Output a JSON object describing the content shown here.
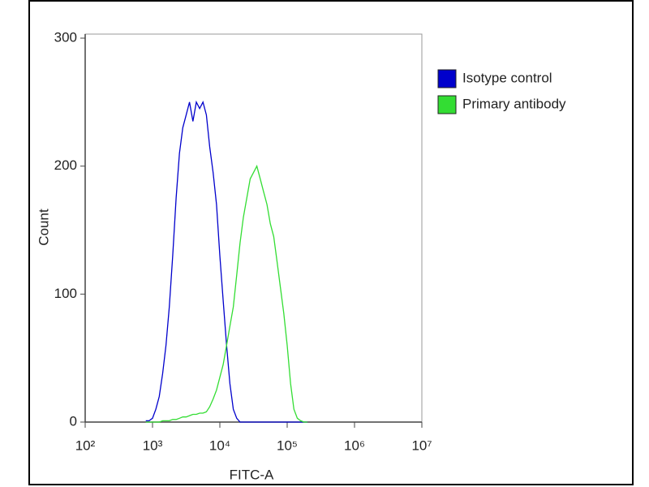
{
  "chart_data": {
    "type": "line",
    "xlabel": "FITC-A",
    "ylabel": "Count",
    "xscale": "log",
    "xlim": [
      100,
      10000000
    ],
    "ylim": [
      0,
      300
    ],
    "xticks": [
      {
        "value": 100,
        "label": "10²"
      },
      {
        "value": 1000,
        "label": "10³"
      },
      {
        "value": 10000,
        "label": "10⁴"
      },
      {
        "value": 100000,
        "label": "10⁵"
      },
      {
        "value": 1000000,
        "label": "10⁶"
      },
      {
        "value": 10000000,
        "label": "10⁷"
      }
    ],
    "yticks": [
      0,
      100,
      200,
      300
    ],
    "legend": "upper right",
    "x": [
      794,
      891,
      1000,
      1122,
      1259,
      1413,
      1585,
      1778,
      1995,
      2239,
      2512,
      2818,
      3162,
      3548,
      3981,
      4467,
      5012,
      5623,
      6310,
      7079,
      7943,
      8913,
      10000,
      11220,
      12589,
      14125,
      15849,
      17783,
      19953,
      22387,
      25119,
      28184,
      31623,
      35481,
      39811,
      44668,
      50119,
      56234,
      63096,
      70795,
      79433,
      89125,
      100000,
      112202,
      125893,
      141254,
      158489,
      177828,
      199526
    ],
    "series": [
      {
        "name": "Isotype control",
        "color": "#0000cc",
        "values": [
          1,
          1,
          3,
          10,
          20,
          38,
          60,
          90,
          130,
          175,
          210,
          230,
          240,
          250,
          235,
          250,
          245,
          250,
          240,
          215,
          195,
          170,
          130,
          95,
          60,
          30,
          10,
          3,
          0,
          0,
          0,
          0,
          0,
          0,
          0,
          0,
          0,
          0,
          0,
          0,
          0,
          0,
          0,
          0,
          0,
          0,
          0,
          0,
          0
        ]
      },
      {
        "name": "Primary antibody",
        "color": "#33dd33",
        "values": [
          0,
          0,
          0,
          0,
          0,
          1,
          1,
          1,
          2,
          2,
          3,
          4,
          4,
          5,
          6,
          6,
          7,
          7,
          8,
          12,
          18,
          25,
          35,
          45,
          60,
          75,
          90,
          115,
          140,
          160,
          175,
          190,
          195,
          200,
          190,
          180,
          170,
          155,
          145,
          125,
          105,
          85,
          60,
          30,
          10,
          3,
          1,
          0,
          0
        ]
      }
    ]
  }
}
